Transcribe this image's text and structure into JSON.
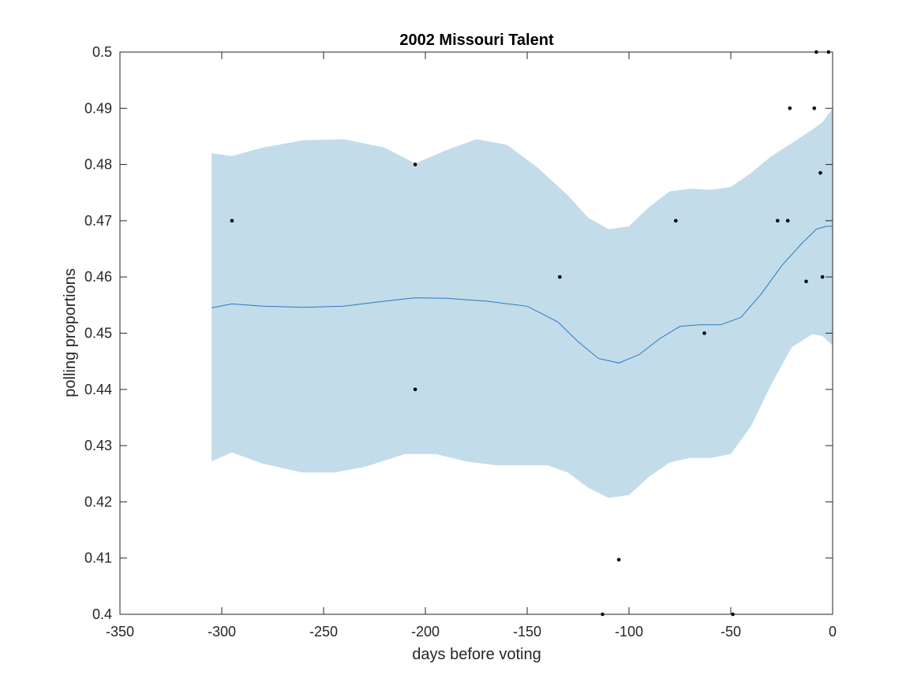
{
  "chart_data": {
    "type": "scatter",
    "title": "2002 Missouri Talent",
    "xlabel": "days before voting",
    "ylabel": "polling proportions",
    "xlim": [
      -350,
      0
    ],
    "ylim": [
      0.4,
      0.5
    ],
    "xticks": [
      -350,
      -300,
      -250,
      -200,
      -150,
      -100,
      -50,
      0
    ],
    "xtick_labels": [
      "-350",
      "-300",
      "-250",
      "-200",
      "-150",
      "-100",
      "-50",
      "0"
    ],
    "yticks": [
      0.4,
      0.41,
      0.42,
      0.43,
      0.44,
      0.45,
      0.46,
      0.47,
      0.48,
      0.49,
      0.5
    ],
    "ytick_labels": [
      "0.4",
      "0.41",
      "0.42",
      "0.43",
      "0.44",
      "0.45",
      "0.46",
      "0.47",
      "0.48",
      "0.49",
      "0.5"
    ],
    "grid": false,
    "colors": {
      "band": "#c2dcea",
      "mean_line": "#2e78bd",
      "points": "#000000",
      "axes": "#262626"
    },
    "points": [
      {
        "x": -295,
        "y": 0.47
      },
      {
        "x": -205,
        "y": 0.48
      },
      {
        "x": -205,
        "y": 0.44
      },
      {
        "x": -134,
        "y": 0.46
      },
      {
        "x": -113,
        "y": 0.4
      },
      {
        "x": -105,
        "y": 0.4097
      },
      {
        "x": -77,
        "y": 0.47
      },
      {
        "x": -63,
        "y": 0.45
      },
      {
        "x": -49,
        "y": 0.4
      },
      {
        "x": -27,
        "y": 0.47
      },
      {
        "x": -22,
        "y": 0.47
      },
      {
        "x": -21,
        "y": 0.49
      },
      {
        "x": -13,
        "y": 0.4592
      },
      {
        "x": -9,
        "y": 0.49
      },
      {
        "x": -8,
        "y": 0.5
      },
      {
        "x": -6,
        "y": 0.4785
      },
      {
        "x": -5,
        "y": 0.46
      },
      {
        "x": -2,
        "y": 0.5
      }
    ],
    "mean": [
      {
        "x": -305,
        "y": 0.4545
      },
      {
        "x": -295,
        "y": 0.4552
      },
      {
        "x": -280,
        "y": 0.4548
      },
      {
        "x": -260,
        "y": 0.4546
      },
      {
        "x": -240,
        "y": 0.4548
      },
      {
        "x": -220,
        "y": 0.4557
      },
      {
        "x": -205,
        "y": 0.4563
      },
      {
        "x": -190,
        "y": 0.4562
      },
      {
        "x": -170,
        "y": 0.4557
      },
      {
        "x": -150,
        "y": 0.4548
      },
      {
        "x": -135,
        "y": 0.452
      },
      {
        "x": -125,
        "y": 0.4485
      },
      {
        "x": -115,
        "y": 0.4455
      },
      {
        "x": -105,
        "y": 0.4447
      },
      {
        "x": -95,
        "y": 0.4462
      },
      {
        "x": -85,
        "y": 0.449
      },
      {
        "x": -75,
        "y": 0.4512
      },
      {
        "x": -65,
        "y": 0.4515
      },
      {
        "x": -55,
        "y": 0.4515
      },
      {
        "x": -45,
        "y": 0.4528
      },
      {
        "x": -35,
        "y": 0.457
      },
      {
        "x": -25,
        "y": 0.462
      },
      {
        "x": -15,
        "y": 0.466
      },
      {
        "x": -8,
        "y": 0.4685
      },
      {
        "x": -3,
        "y": 0.469
      },
      {
        "x": 0,
        "y": 0.469
      }
    ],
    "band_upper": [
      {
        "x": -305,
        "y": 0.482
      },
      {
        "x": -295,
        "y": 0.4815
      },
      {
        "x": -280,
        "y": 0.483
      },
      {
        "x": -260,
        "y": 0.4843
      },
      {
        "x": -240,
        "y": 0.4845
      },
      {
        "x": -220,
        "y": 0.483
      },
      {
        "x": -205,
        "y": 0.4802
      },
      {
        "x": -190,
        "y": 0.4825
      },
      {
        "x": -175,
        "y": 0.4845
      },
      {
        "x": -160,
        "y": 0.4835
      },
      {
        "x": -145,
        "y": 0.4795
      },
      {
        "x": -130,
        "y": 0.4745
      },
      {
        "x": -120,
        "y": 0.4705
      },
      {
        "x": -110,
        "y": 0.4685
      },
      {
        "x": -100,
        "y": 0.469
      },
      {
        "x": -90,
        "y": 0.4725
      },
      {
        "x": -80,
        "y": 0.4752
      },
      {
        "x": -70,
        "y": 0.4757
      },
      {
        "x": -60,
        "y": 0.4755
      },
      {
        "x": -50,
        "y": 0.476
      },
      {
        "x": -40,
        "y": 0.4785
      },
      {
        "x": -30,
        "y": 0.4815
      },
      {
        "x": -20,
        "y": 0.4838
      },
      {
        "x": -10,
        "y": 0.4862
      },
      {
        "x": -5,
        "y": 0.4875
      },
      {
        "x": 0,
        "y": 0.49
      }
    ],
    "band_lower": [
      {
        "x": -305,
        "y": 0.4272
      },
      {
        "x": -295,
        "y": 0.4288
      },
      {
        "x": -280,
        "y": 0.4268
      },
      {
        "x": -260,
        "y": 0.4252
      },
      {
        "x": -245,
        "y": 0.4252
      },
      {
        "x": -230,
        "y": 0.4262
      },
      {
        "x": -210,
        "y": 0.4285
      },
      {
        "x": -195,
        "y": 0.4285
      },
      {
        "x": -180,
        "y": 0.4272
      },
      {
        "x": -165,
        "y": 0.4265
      },
      {
        "x": -150,
        "y": 0.4265
      },
      {
        "x": -140,
        "y": 0.4265
      },
      {
        "x": -130,
        "y": 0.4252
      },
      {
        "x": -120,
        "y": 0.4225
      },
      {
        "x": -110,
        "y": 0.4207
      },
      {
        "x": -100,
        "y": 0.4212
      },
      {
        "x": -90,
        "y": 0.4245
      },
      {
        "x": -80,
        "y": 0.427
      },
      {
        "x": -70,
        "y": 0.4278
      },
      {
        "x": -60,
        "y": 0.4278
      },
      {
        "x": -50,
        "y": 0.4285
      },
      {
        "x": -40,
        "y": 0.4335
      },
      {
        "x": -30,
        "y": 0.441
      },
      {
        "x": -20,
        "y": 0.4475
      },
      {
        "x": -10,
        "y": 0.4498
      },
      {
        "x": -5,
        "y": 0.4495
      },
      {
        "x": 0,
        "y": 0.4478
      }
    ]
  }
}
